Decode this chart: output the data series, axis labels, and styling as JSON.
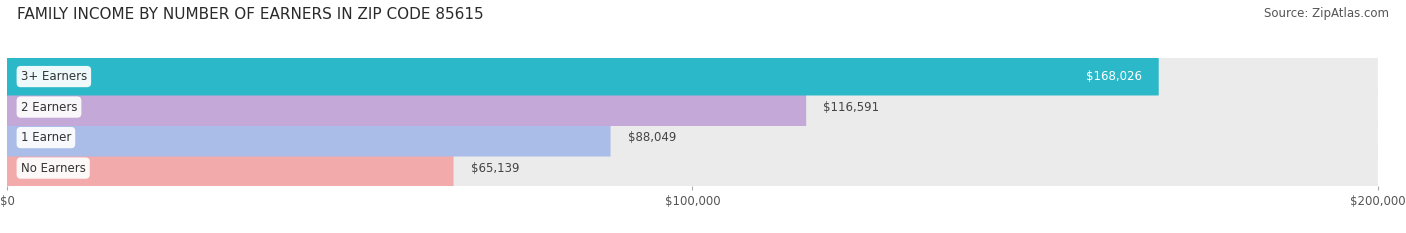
{
  "title": "FAMILY INCOME BY NUMBER OF EARNERS IN ZIP CODE 85615",
  "source": "Source: ZipAtlas.com",
  "categories": [
    "No Earners",
    "1 Earner",
    "2 Earners",
    "3+ Earners"
  ],
  "values": [
    65139,
    88049,
    116591,
    168026
  ],
  "bar_colors": [
    "#f2aaaa",
    "#aabde8",
    "#c3a8d8",
    "#2bb8c8"
  ],
  "bar_bg_color": "#ebebeb",
  "label_colors": [
    "#444444",
    "#444444",
    "#444444",
    "#ffffff"
  ],
  "xlim": [
    0,
    200000
  ],
  "xticks": [
    0,
    100000,
    200000
  ],
  "xtick_labels": [
    "$0",
    "$100,000",
    "$200,000"
  ],
  "background_color": "#ffffff",
  "bar_height": 0.62,
  "title_fontsize": 11,
  "source_fontsize": 8.5,
  "label_fontsize": 8.5,
  "category_fontsize": 8.5,
  "tick_fontsize": 8.5
}
